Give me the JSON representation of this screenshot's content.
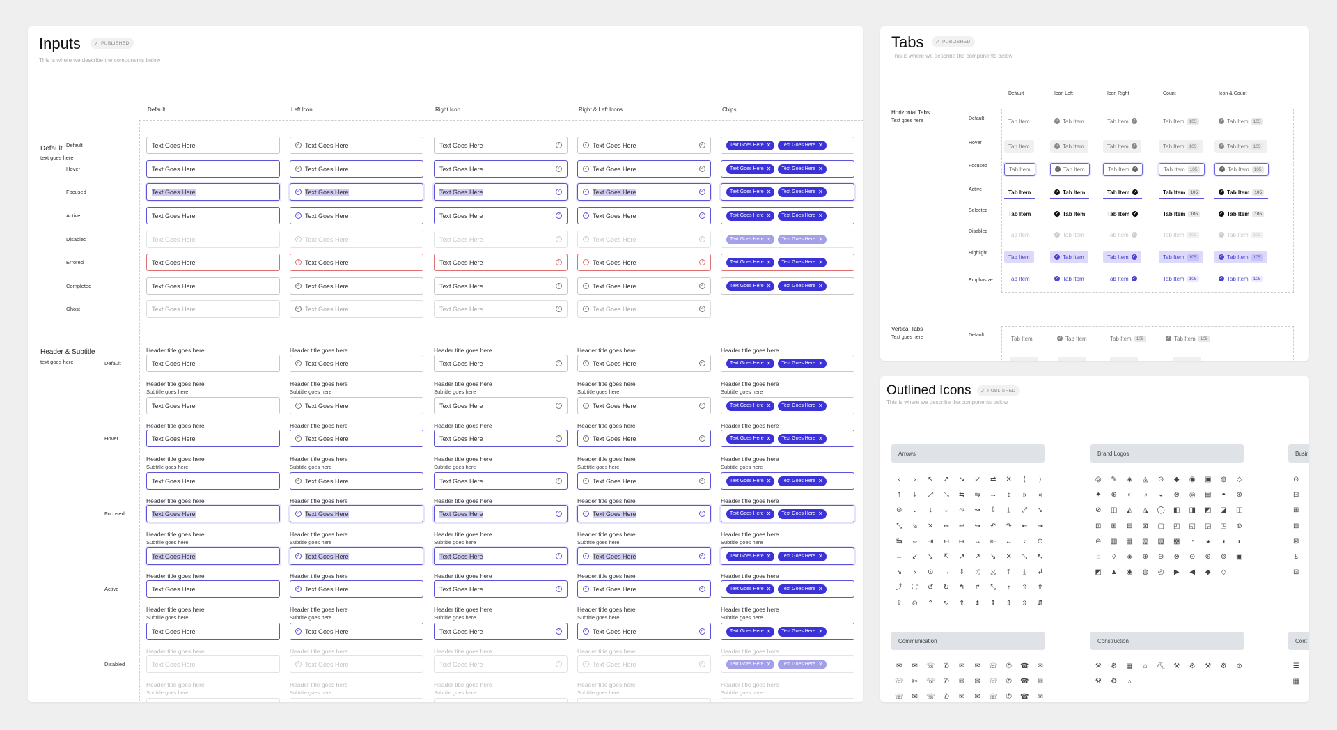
{
  "inputs": {
    "title": "Inputs",
    "badge": "PUBLISHED",
    "subtitle": "This is where we describe the components below",
    "columns": [
      "Default",
      "Left Icon",
      "Right Icon",
      "Right & Left Icons",
      "Chips"
    ],
    "section_default": {
      "title": "Default",
      "subtitle": "text goes here"
    },
    "section_header": {
      "title": "Header & Subtitle",
      "subtitle": "text goes here"
    },
    "state_labels": {
      "default": "Default",
      "hover": "Hover",
      "focused": "Focused",
      "active": "Active",
      "disabled": "Disabled",
      "errored": "Errored",
      "completed": "Completed",
      "ghost": "Ghost"
    },
    "field_text": "Text Goes Here",
    "chip_text": "Text Goes Here",
    "header_title": "Header title goes here",
    "subtitle_text": "Subtitle goes here"
  },
  "tabs": {
    "title": "Tabs",
    "badge": "PUBLISHED",
    "subtitle": "This is where we describe the components below",
    "columns": [
      "Default",
      "Icon Left",
      "Icon Right",
      "Count",
      "Icon & Count"
    ],
    "section_horizontal": {
      "title": "Horizontal Tabs",
      "subtitle": "Text goes here"
    },
    "section_vertical": {
      "title": "Vertical Tabs",
      "subtitle": "Text goes here"
    },
    "state_labels": {
      "default": "Default",
      "hover": "Hover",
      "focused": "Focused",
      "active": "Active",
      "selected": "Selected",
      "disabled": "Disabled",
      "highlight": "Highlight",
      "emphasize": "Emphasize"
    },
    "tab_text": "Tab Item",
    "count": "105"
  },
  "icons": {
    "title": "Outlined Icons",
    "badge": "PUBLISHED",
    "subtitle": "This is where we describe the components below",
    "groups": [
      "Arrows",
      "Brand Logos",
      "Busir",
      "Communication",
      "Construction",
      "Cont"
    ]
  }
}
